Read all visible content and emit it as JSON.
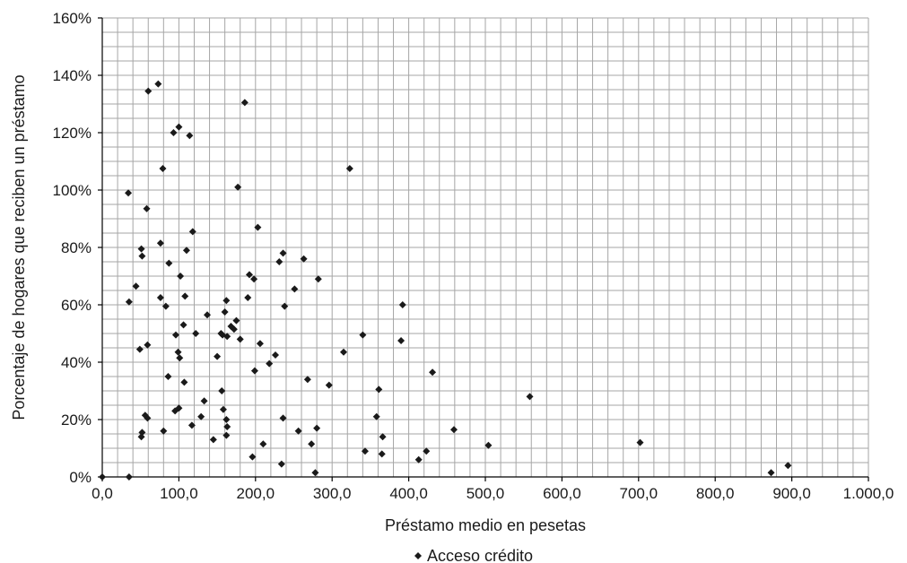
{
  "chart_data": {
    "type": "scatter",
    "xlabel": "Préstamo medio en pesetas",
    "ylabel": "Porcentaje de hogares que reciben un préstamo",
    "xlim": [
      0,
      1000
    ],
    "ylim": [
      0,
      1.6
    ],
    "x_ticks": [
      "0,0",
      "100,0",
      "200,0",
      "300,0",
      "400,0",
      "500,0",
      "600,0",
      "700,0",
      "800,0",
      "900,0",
      "1.000,0"
    ],
    "y_ticks": [
      "0%",
      "20%",
      "40%",
      "60%",
      "80%",
      "100%",
      "120%",
      "140%",
      "160%"
    ],
    "grid": true,
    "legend_position": "bottom",
    "series": [
      {
        "name": "Acceso crédito",
        "marker": "diamond",
        "color": "#1a1a1a",
        "points": [
          [
            0,
            0.0
          ],
          [
            35,
            0.0
          ],
          [
            34,
            0.99
          ],
          [
            35,
            0.61
          ],
          [
            44,
            0.665
          ],
          [
            49,
            0.445
          ],
          [
            51,
            0.795
          ],
          [
            52,
            0.77
          ],
          [
            51,
            0.14
          ],
          [
            52,
            0.155
          ],
          [
            56,
            0.215
          ],
          [
            59,
            0.205
          ],
          [
            58,
            0.935
          ],
          [
            59,
            0.46
          ],
          [
            60,
            1.345
          ],
          [
            73,
            1.37
          ],
          [
            76,
            0.815
          ],
          [
            76,
            0.625
          ],
          [
            79,
            1.075
          ],
          [
            80,
            0.16
          ],
          [
            83,
            0.595
          ],
          [
            86,
            0.35
          ],
          [
            87,
            0.745
          ],
          [
            93,
            1.2
          ],
          [
            95,
            0.23
          ],
          [
            96,
            0.495
          ],
          [
            100,
            1.22
          ],
          [
            99,
            0.435
          ],
          [
            100,
            0.24
          ],
          [
            101,
            0.415
          ],
          [
            102,
            0.7
          ],
          [
            106,
            0.53
          ],
          [
            107,
            0.33
          ],
          [
            108,
            0.63
          ],
          [
            110,
            0.79
          ],
          [
            114,
            1.19
          ],
          [
            118,
            0.855
          ],
          [
            117,
            0.18
          ],
          [
            122,
            0.5
          ],
          [
            129,
            0.21
          ],
          [
            133,
            0.265
          ],
          [
            137,
            0.565
          ],
          [
            145,
            0.13
          ],
          [
            150,
            0.42
          ],
          [
            155,
            0.5
          ],
          [
            156,
            0.3
          ],
          [
            157,
            0.495
          ],
          [
            160,
            0.575
          ],
          [
            158,
            0.235
          ],
          [
            162,
            0.615
          ],
          [
            163,
            0.49
          ],
          [
            162,
            0.2
          ],
          [
            163,
            0.175
          ],
          [
            162,
            0.145
          ],
          [
            168,
            0.525
          ],
          [
            172,
            0.515
          ],
          [
            175,
            0.545
          ],
          [
            177,
            1.01
          ],
          [
            180,
            0.48
          ],
          [
            186,
            1.305
          ],
          [
            190,
            0.625
          ],
          [
            192,
            0.705
          ],
          [
            196,
            0.07
          ],
          [
            198,
            0.69
          ],
          [
            199,
            0.37
          ],
          [
            203,
            0.87
          ],
          [
            206,
            0.465
          ],
          [
            210,
            0.115
          ],
          [
            218,
            0.395
          ],
          [
            226,
            0.425
          ],
          [
            231,
            0.75
          ],
          [
            234,
            0.045
          ],
          [
            236,
            0.78
          ],
          [
            236,
            0.205
          ],
          [
            238,
            0.595
          ],
          [
            251,
            0.655
          ],
          [
            256,
            0.16
          ],
          [
            263,
            0.76
          ],
          [
            268,
            0.34
          ],
          [
            273,
            0.115
          ],
          [
            278,
            0.015
          ],
          [
            280,
            0.17
          ],
          [
            282,
            0.69
          ],
          [
            296,
            0.32
          ],
          [
            315,
            0.435
          ],
          [
            323,
            1.075
          ],
          [
            340,
            0.495
          ],
          [
            343,
            0.09
          ],
          [
            358,
            0.21
          ],
          [
            361,
            0.305
          ],
          [
            365,
            0.08
          ],
          [
            366,
            0.14
          ],
          [
            390,
            0.475
          ],
          [
            392,
            0.6
          ],
          [
            413,
            0.06
          ],
          [
            423,
            0.09
          ],
          [
            431,
            0.365
          ],
          [
            459,
            0.165
          ],
          [
            504,
            0.11
          ],
          [
            558,
            0.28
          ],
          [
            702,
            0.12
          ],
          [
            873,
            0.015
          ],
          [
            895,
            0.04
          ]
        ]
      }
    ]
  }
}
